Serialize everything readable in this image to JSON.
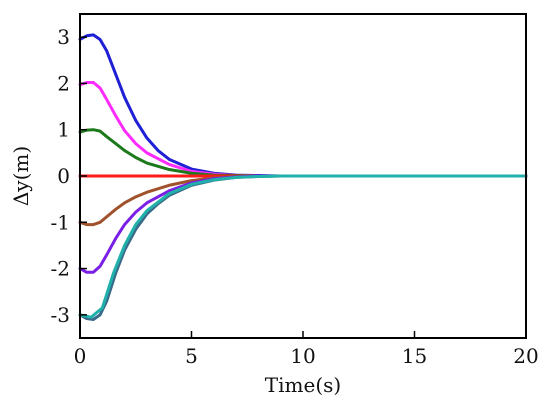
{
  "chart_data": {
    "type": "line",
    "title": "",
    "xlabel": "Time(s)",
    "ylabel": "Δy(m)",
    "xlim": [
      0,
      20
    ],
    "ylim": [
      -3.5,
      3.5
    ],
    "xticks": [
      0,
      5,
      10,
      15,
      20
    ],
    "xtick_labels": [
      "0",
      "5",
      "10",
      "15",
      "20"
    ],
    "yticks": [
      -3,
      -2,
      -1,
      0,
      1,
      2,
      3
    ],
    "ytick_labels": [
      "-3",
      "-2",
      "-1",
      "0",
      "1",
      "2",
      "3"
    ],
    "grid": false,
    "legend": "none",
    "series": [
      {
        "color": "#1f1fd6",
        "x": [
          0,
          0.3,
          0.6,
          0.9,
          1.2,
          1.6,
          2.0,
          2.5,
          3.0,
          3.5,
          4.0,
          5.0,
          6.0,
          7.0,
          8.0,
          9.0,
          10.0,
          11.0,
          20.0
        ],
        "y": [
          2.95,
          3.03,
          3.05,
          2.95,
          2.7,
          2.2,
          1.7,
          1.2,
          0.82,
          0.55,
          0.36,
          0.15,
          0.06,
          0.02,
          0.01,
          0.0,
          0.0,
          0.0,
          0.0
        ]
      },
      {
        "color": "#ff2bff",
        "x": [
          0,
          0.3,
          0.6,
          0.9,
          1.2,
          1.6,
          2.0,
          2.5,
          3.0,
          4.0,
          5.0,
          6.0,
          7.0,
          8.0,
          9.0,
          10.0,
          20.0
        ],
        "y": [
          1.97,
          2.02,
          2.02,
          1.9,
          1.65,
          1.3,
          0.98,
          0.7,
          0.5,
          0.25,
          0.1,
          0.04,
          0.01,
          0.0,
          0.0,
          0.0,
          0.0
        ]
      },
      {
        "color": "#1c7a1c",
        "x": [
          0,
          0.3,
          0.6,
          0.9,
          1.2,
          1.6,
          2.0,
          2.5,
          3.0,
          4.0,
          5.0,
          6.0,
          7.0,
          8.0,
          9.0,
          20.0
        ],
        "y": [
          0.95,
          0.99,
          1.0,
          0.97,
          0.85,
          0.7,
          0.55,
          0.4,
          0.28,
          0.14,
          0.06,
          0.02,
          0.01,
          0.0,
          0.0,
          0.0
        ]
      },
      {
        "color": "#ff1a1a",
        "x": [
          0,
          20
        ],
        "y": [
          0,
          0
        ]
      },
      {
        "color": "#a0522d",
        "x": [
          0,
          0.3,
          0.6,
          0.9,
          1.2,
          1.6,
          2.0,
          2.5,
          3.0,
          4.0,
          5.0,
          6.0,
          7.0,
          8.0,
          9.0,
          20.0
        ],
        "y": [
          -1.0,
          -1.05,
          -1.05,
          -1.0,
          -0.88,
          -0.72,
          -0.58,
          -0.45,
          -0.35,
          -0.2,
          -0.1,
          -0.04,
          -0.01,
          0.0,
          0.0,
          0.0
        ]
      },
      {
        "color": "#7a1fe6",
        "x": [
          0,
          0.3,
          0.6,
          0.9,
          1.2,
          1.6,
          2.0,
          2.5,
          3.0,
          4.0,
          5.0,
          6.0,
          7.0,
          8.0,
          9.0,
          10.0,
          20.0
        ],
        "y": [
          -2.0,
          -2.08,
          -2.08,
          -1.95,
          -1.7,
          -1.35,
          -1.05,
          -0.78,
          -0.58,
          -0.32,
          -0.15,
          -0.06,
          -0.02,
          0.0,
          0.0,
          0.0,
          0.0
        ]
      },
      {
        "color": "#3a6a8a",
        "x": [
          0,
          0.3,
          0.6,
          0.9,
          1.2,
          1.6,
          2.0,
          2.5,
          3.0,
          3.5,
          4.0,
          5.0,
          6.0,
          7.0,
          8.0,
          9.0,
          10.0,
          11.0,
          20.0
        ],
        "y": [
          -3.0,
          -3.08,
          -3.1,
          -3.0,
          -2.7,
          -2.1,
          -1.6,
          -1.15,
          -0.82,
          -0.6,
          -0.42,
          -0.2,
          -0.09,
          -0.03,
          -0.01,
          0.0,
          0.0,
          0.0,
          0.0
        ]
      },
      {
        "color": "#20b2aa",
        "x": [
          0,
          0.5,
          1.0,
          1.5,
          2.0,
          2.5,
          3.0,
          4.0,
          5.0,
          6.0,
          7.0,
          8.0,
          9.0,
          20.0
        ],
        "y": [
          -3.0,
          -3.05,
          -2.85,
          -2.1,
          -1.5,
          -1.05,
          -0.75,
          -0.38,
          -0.18,
          -0.08,
          -0.03,
          -0.01,
          0.0,
          0.0
        ]
      }
    ]
  }
}
